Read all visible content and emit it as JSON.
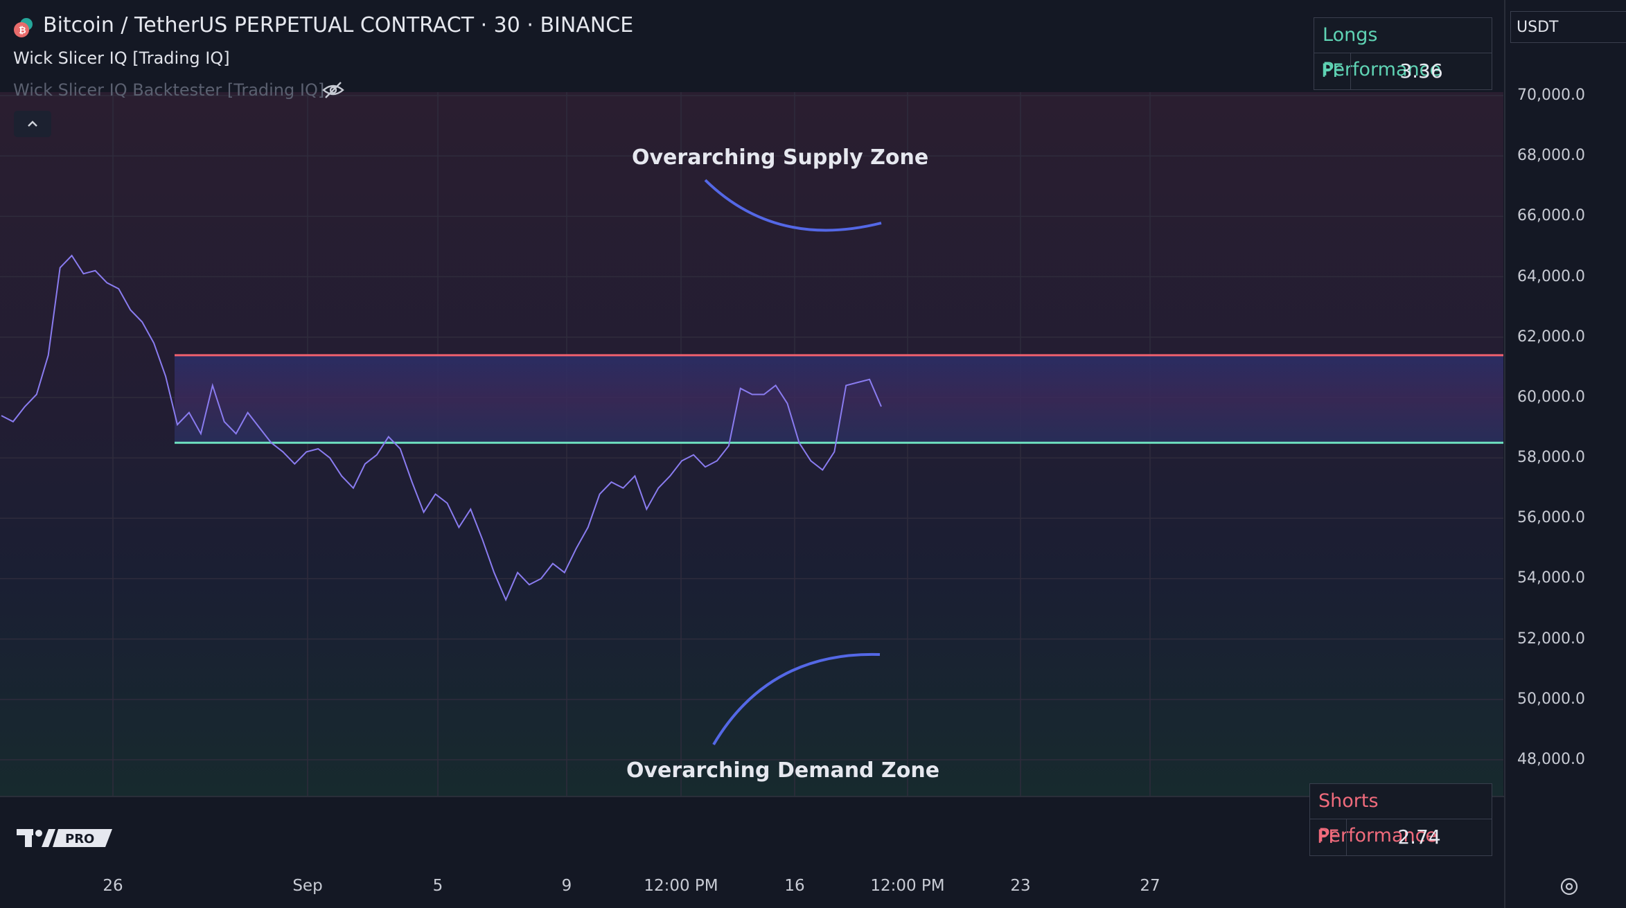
{
  "header": {
    "title": "Bitcoin / TetherUS PERPETUAL CONTRACT · 30 · BINANCE",
    "indicator_1": "Wick Slicer IQ [Trading IQ]",
    "indicator_2": "Wick Slicer IQ Backtester [Trading IQ]"
  },
  "currency": "USDT",
  "longs_panel": {
    "title": "Longs Performance",
    "key": "PF",
    "value": "3.36",
    "color": "#5fd3b4"
  },
  "shorts_panel": {
    "title": "Shorts Performance",
    "key": "PF",
    "value": "2.74",
    "color": "#f06b7c"
  },
  "annotations": {
    "supply": "Overarching Supply Zone",
    "demand": "Overarching Demand Zone"
  },
  "chart_data": {
    "type": "line",
    "title": "",
    "xlabel": "",
    "ylabel": "",
    "ylim": [
      46800,
      71200
    ],
    "y_ticks": [
      "70,000.0",
      "68,000.0",
      "66,000.0",
      "64,000.0",
      "62,000.0",
      "60,000.0",
      "58,000.0",
      "56,000.0",
      "54,000.0",
      "52,000.0",
      "50,000.0",
      "48,000.0"
    ],
    "y_tick_values": [
      70000,
      68000,
      66000,
      64000,
      62000,
      60000,
      58000,
      56000,
      54000,
      52000,
      50000,
      48000
    ],
    "x_ticks": [
      "26",
      "Sep",
      "5",
      "9",
      "12:00 PM",
      "16",
      "12:00 PM",
      "23",
      "27"
    ],
    "series": [
      {
        "color": "#8a7cf0",
        "values": [
          59400,
          59200,
          59700,
          60100,
          61400,
          64300,
          64700,
          64100,
          64200,
          63800,
          63600,
          62900,
          62500,
          61800,
          60700,
          59100,
          59500,
          58800,
          60400,
          59200,
          58800,
          59500,
          59000,
          58500,
          58200,
          57800,
          58200,
          58300,
          58000,
          57400,
          57000,
          57800,
          58100,
          58700,
          58300,
          57200,
          56200,
          56800,
          56500,
          55700,
          56300,
          55300,
          54200,
          53300,
          54200,
          53800,
          54000,
          54500,
          54200,
          55000,
          55700,
          56800,
          57200,
          57000,
          57400,
          56300,
          57000,
          57400,
          57900,
          58100,
          57700,
          57900,
          58400,
          60300,
          60100,
          60100,
          60400,
          59800,
          58500,
          57900,
          57600,
          58200,
          60400,
          60500,
          60600,
          59700
        ]
      }
    ],
    "overlays": {
      "supply_line": 61400,
      "demand_line": 58500,
      "supply_line_color": "#f0606e",
      "demand_line_color": "#6ee0c0"
    }
  }
}
